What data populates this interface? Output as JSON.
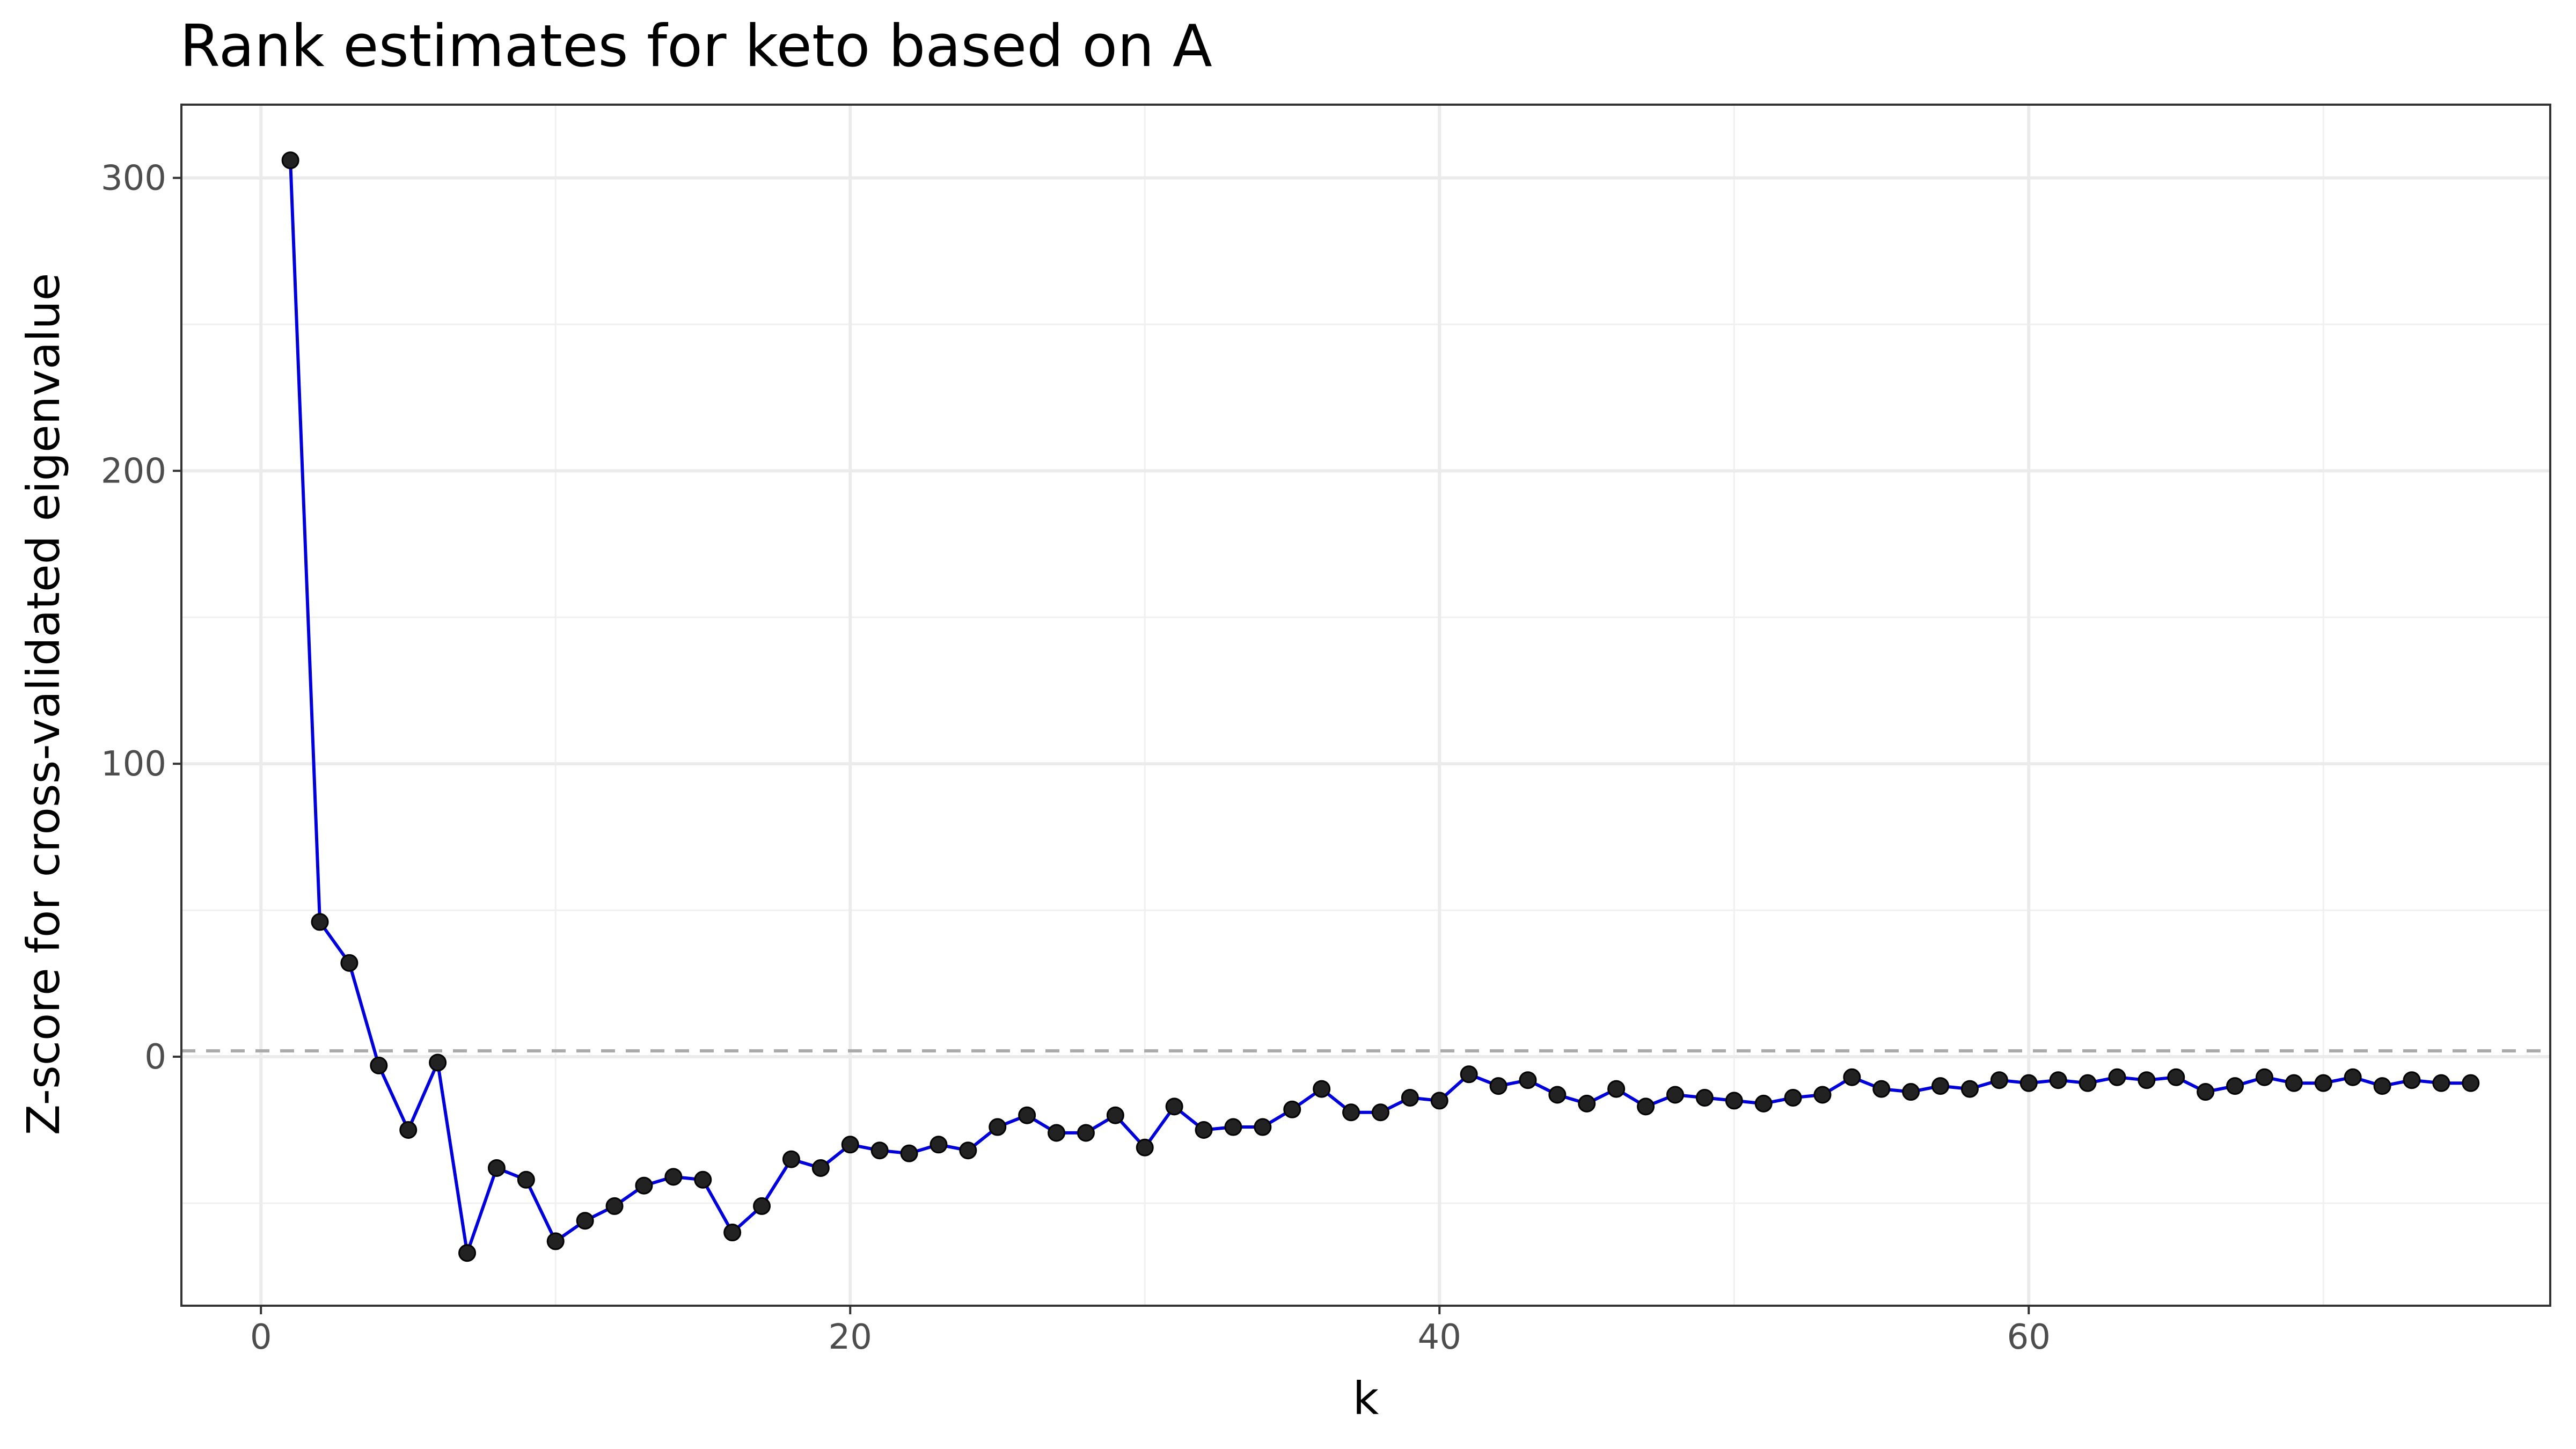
{
  "chart_data": {
    "type": "line",
    "title": "Rank estimates for keto based on A",
    "xlabel": "k",
    "ylabel": "Z-score for cross-validated eigenvalue",
    "xlim": [
      -2.7,
      77.7
    ],
    "ylim": [
      -85,
      325
    ],
    "x_ticks": [
      0,
      20,
      40,
      60
    ],
    "y_ticks": [
      0,
      100,
      200,
      300
    ],
    "x_tick_labels": [
      "0",
      "20",
      "40",
      "60"
    ],
    "y_tick_labels": [
      "0",
      "100",
      "200",
      "300"
    ],
    "grid": true,
    "reference_line": {
      "y": 2,
      "style": "dashed",
      "color": "#aaaaaa"
    },
    "line_color": "#0000dd",
    "point_color": "#222222",
    "series": [
      {
        "x": [
          1,
          2,
          3,
          4,
          5,
          6,
          7,
          8,
          9,
          10,
          11,
          12,
          13,
          14,
          15,
          16,
          17,
          18,
          19,
          20,
          21,
          22,
          23,
          24,
          25,
          26,
          27,
          28,
          29,
          30,
          31,
          32,
          33,
          34,
          35,
          36,
          37,
          38,
          39,
          40,
          41,
          42,
          43,
          44,
          45,
          46,
          47,
          48,
          49,
          50,
          51,
          52,
          53,
          54,
          55,
          56,
          57,
          58,
          59,
          60,
          61,
          62,
          63,
          64,
          65,
          66,
          67,
          68,
          69,
          70,
          71,
          72,
          73,
          74,
          75
        ],
        "values": [
          306,
          46,
          32,
          -3,
          -25,
          -2,
          -67,
          -38,
          -42,
          -63,
          -56,
          -51,
          -44,
          -41,
          -42,
          -60,
          -51,
          -35,
          -38,
          -30,
          -32,
          -33,
          -30,
          -32,
          -24,
          -20,
          -26,
          -26,
          -20,
          -31,
          -17,
          -25,
          -24,
          -24,
          -18,
          -11,
          -19,
          -19,
          -14,
          -15,
          -6,
          -10,
          -8,
          -13,
          -16,
          -11,
          -17,
          -13,
          -14,
          -15,
          -16,
          -14,
          -13,
          -7,
          -11,
          -12,
          -10,
          -11,
          -8,
          -9,
          -8,
          -9,
          -7,
          -8,
          -7,
          -12,
          -10,
          -7,
          -9,
          -9,
          -7,
          -10,
          -8,
          -9,
          -9
        ]
      }
    ]
  }
}
